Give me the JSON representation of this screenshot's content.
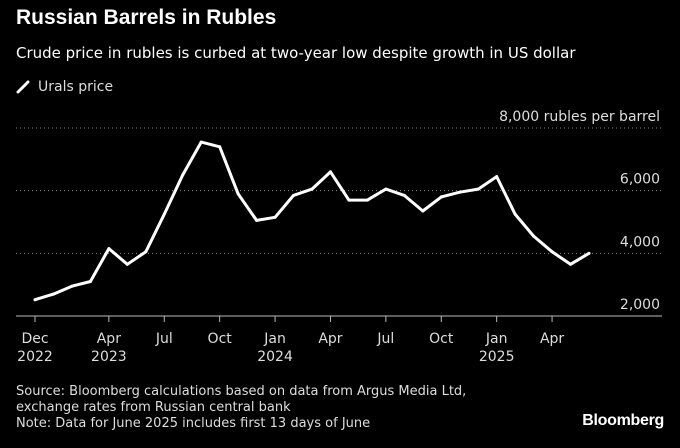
{
  "chart_data": {
    "type": "line",
    "title": "Russian Barrels in Rubles",
    "subtitle": "Crude price in rubles is curbed at two-year low despite growth in US dollar",
    "legend": [
      {
        "label": "Urals price",
        "color": "#ffffff"
      }
    ],
    "ylabel": "rubles per barrel",
    "ylim": [
      2000,
      8000
    ],
    "yticks": [
      2000,
      4000,
      6000,
      8000
    ],
    "ytick_labels": [
      "2,000",
      "4,000",
      "6,000",
      "8,000 rubles per barrel"
    ],
    "xticks": [
      {
        "line1": "Dec",
        "line2": "2022",
        "index": 0
      },
      {
        "line1": "Apr",
        "line2": "2023",
        "index": 4
      },
      {
        "line1": "Jul",
        "line2": "",
        "index": 7
      },
      {
        "line1": "Oct",
        "line2": "",
        "index": 10
      },
      {
        "line1": "Jan",
        "line2": "2024",
        "index": 13
      },
      {
        "line1": "Apr",
        "line2": "",
        "index": 16
      },
      {
        "line1": "Jul",
        "line2": "",
        "index": 19
      },
      {
        "line1": "Oct",
        "line2": "",
        "index": 22
      },
      {
        "line1": "Jan",
        "line2": "2025",
        "index": 25
      },
      {
        "line1": "Apr",
        "line2": "",
        "index": 28
      }
    ],
    "x": [
      "Dec 2022",
      "Jan 2023",
      "Feb 2023",
      "Mar 2023",
      "Apr 2023",
      "May 2023",
      "Jun 2023",
      "Jul 2023",
      "Aug 2023",
      "Sep 2023",
      "Oct 2023",
      "Nov 2023",
      "Dec 2023",
      "Jan 2024",
      "Feb 2024",
      "Mar 2024",
      "Apr 2024",
      "May 2024",
      "Jun 2024",
      "Jul 2024",
      "Aug 2024",
      "Sep 2024",
      "Oct 2024",
      "Nov 2024",
      "Dec 2024",
      "Jan 2025",
      "Feb 2025",
      "Mar 2025",
      "Apr 2025",
      "May 2025",
      "Jun 2025"
    ],
    "series": [
      {
        "name": "Urals price",
        "values": [
          2520,
          2700,
          2950,
          3100,
          4150,
          3650,
          4050,
          5250,
          6500,
          7550,
          7400,
          5900,
          5050,
          5150,
          5850,
          6050,
          6600,
          5700,
          5700,
          6050,
          5850,
          5350,
          5800,
          5950,
          6050,
          6450,
          5250,
          4550,
          4050,
          3650,
          4000
        ]
      }
    ]
  },
  "footer": {
    "source_line1": "Source: Bloomberg calculations based on data from Argus Media Ltd,",
    "source_line2": "exchange rates from Russian central bank",
    "note": "Note: Data for June 2025 includes first 13 days of June"
  },
  "brand": "Bloomberg",
  "colors": {
    "background": "#000000",
    "line": "#ffffff",
    "grid": "#888888",
    "text": "#dddddd"
  }
}
